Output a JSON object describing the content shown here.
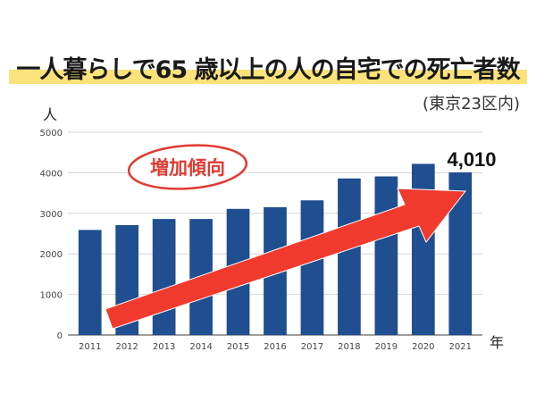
{
  "header": {
    "title": "一人暮らしで65 歳以上の人の自宅での死亡者数",
    "subtitle": "(東京23区内)"
  },
  "annotation": {
    "stamp_text": "増加傾向",
    "callout_value": "4,010"
  },
  "colors": {
    "bar": "#1f4e91",
    "arrow": "#f03a2e",
    "highlight": "#fbe27a",
    "stamp": "#e03a32"
  },
  "chart_data": {
    "type": "bar",
    "ylabel": "人",
    "xlabel": "年",
    "ylim": [
      0,
      5000
    ],
    "yticks": [
      "0",
      "1000",
      "2000",
      "3000",
      "4000",
      "5000"
    ],
    "categories": [
      "2011",
      "2012",
      "2013",
      "2014",
      "2015",
      "2016",
      "2017",
      "2018",
      "2019",
      "2020",
      "2021"
    ],
    "values": [
      2590,
      2710,
      2860,
      2860,
      3110,
      3150,
      3320,
      3860,
      3910,
      4220,
      4010
    ],
    "grid": true
  }
}
